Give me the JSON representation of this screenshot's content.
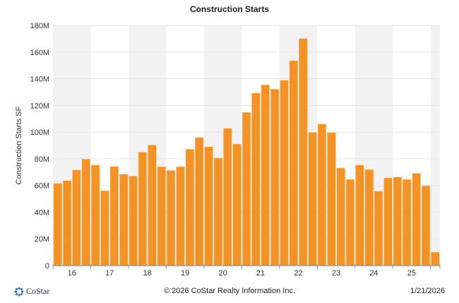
{
  "chart_data": {
    "type": "bar",
    "title": "Construction Starts",
    "ylabel": "Construction Starts SF",
    "xlabel": "",
    "ylim": [
      0,
      180000000
    ],
    "y_ticks": [
      0,
      20000000,
      40000000,
      60000000,
      80000000,
      100000000,
      120000000,
      140000000,
      160000000,
      180000000
    ],
    "y_tick_labels": [
      "0",
      "20M",
      "40M",
      "60M",
      "80M",
      "100M",
      "120M",
      "140M",
      "160M",
      "180M"
    ],
    "x_tick_labels": [
      "16",
      "17",
      "18",
      "19",
      "20",
      "21",
      "22",
      "23",
      "24",
      "25"
    ],
    "periodicity": "quarterly",
    "grid": true,
    "alternating_year_bands": true,
    "bar_color": "#f39325",
    "band_color": "#f2f2f2",
    "values": [
      61600000,
      63700000,
      71700000,
      79800000,
      75400000,
      56100000,
      74300000,
      68500000,
      67100000,
      85100000,
      90400000,
      74100000,
      71300000,
      74100000,
      87200000,
      96000000,
      89100000,
      80700000,
      102900000,
      91100000,
      114900000,
      129400000,
      135400000,
      132200000,
      138900000,
      153600000,
      170200000,
      99900000,
      106100000,
      99700000,
      73100000,
      64600000,
      75400000,
      72000000,
      55800000,
      65700000,
      66400000,
      64600000,
      69200000,
      59800000,
      10100000
    ]
  },
  "footer": {
    "logo_text": "CoStar",
    "copyright": "© 2026 CoStar Realty Information Inc.",
    "date": "1/21/2026",
    "logo_color": "#1f5fb4"
  }
}
